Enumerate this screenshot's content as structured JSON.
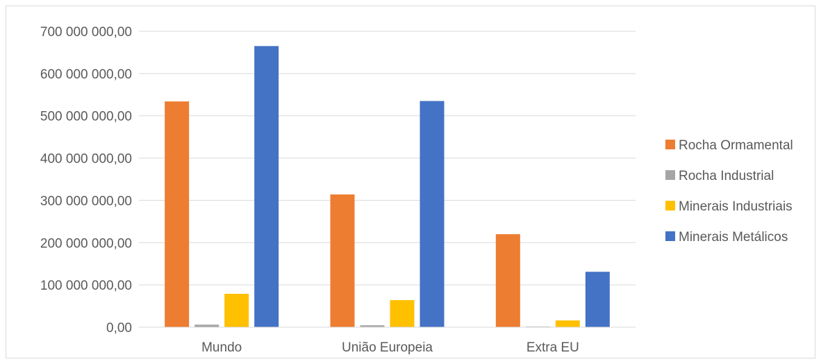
{
  "chart_data": {
    "type": "bar",
    "categories": [
      "Mundo",
      "União Europeia",
      "Extra EU"
    ],
    "series": [
      {
        "name": "Rocha Ormamental",
        "color": "#ED7D31",
        "values": [
          534000000,
          314000000,
          220000000
        ]
      },
      {
        "name": "Rocha Industrial",
        "color": "#A5A5A5",
        "values": [
          6000000,
          4500000,
          1500000
        ]
      },
      {
        "name": "Minerais Industriais",
        "color": "#FFC000",
        "values": [
          79000000,
          64000000,
          16000000
        ]
      },
      {
        "name": "Minerais Metálicos",
        "color": "#4472C4",
        "values": [
          665000000,
          535000000,
          131000000
        ]
      }
    ],
    "ylim": [
      0,
      700000000
    ],
    "yticks": [
      0,
      100000000,
      200000000,
      300000000,
      400000000,
      500000000,
      600000000,
      700000000
    ],
    "ytick_labels": [
      "0,00",
      "100 000 000,00",
      "200 000 000,00",
      "300 000 000,00",
      "400 000 000,00",
      "500 000 000,00",
      "600 000 000,00",
      "700 000 000,00"
    ],
    "grid": true,
    "legend_position": "right"
  }
}
